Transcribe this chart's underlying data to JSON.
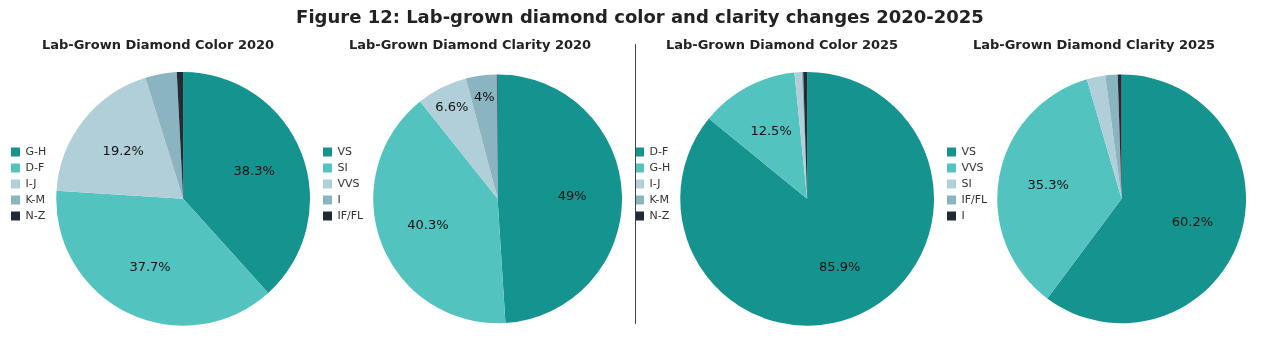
{
  "chart_data": [
    {
      "type": "pie",
      "title": "Lab-Grown Diamond Color 2020",
      "annotations": [
        "Figure 12: Lab-grown diamond color and clarity changes 2020-2025"
      ],
      "legend": "left",
      "categories": [
        "G-H",
        "D-F",
        "I-J",
        "K-M",
        "N-Z"
      ],
      "values": [
        38.3,
        37.7,
        19.2,
        4.0,
        0.8
      ],
      "value_labels": [
        "38.3%",
        "37.7%",
        "19.2%",
        null,
        null
      ],
      "colors": [
        "#14938f",
        "#52c3bf",
        "#b1cfd9",
        "#8ab4bf",
        "#222b36"
      ]
    },
    {
      "type": "pie",
      "title": "Lab-Grown Diamond Clarity 2020",
      "legend": "left",
      "categories": [
        "VS",
        "SI",
        "VVS",
        "I",
        "IF/FL"
      ],
      "values": [
        49,
        40.3,
        6.6,
        4,
        0.1
      ],
      "value_labels": [
        "49%",
        "40.3%",
        "6.6%",
        "4%",
        null
      ],
      "colors": [
        "#14938f",
        "#52c3bf",
        "#b1cfd9",
        "#8ab4bf",
        "#222b36"
      ]
    },
    {
      "type": "pie",
      "title": "Lab-Grown Diamond Color 2025",
      "legend": "left",
      "categories": [
        "D-F",
        "G-H",
        "I-J",
        "K-M",
        "N-Z"
      ],
      "values": [
        85.9,
        12.5,
        0.9,
        0.2,
        0.5
      ],
      "value_labels": [
        "85.9%",
        "12.5%",
        null,
        null,
        null
      ],
      "colors": [
        "#14938f",
        "#52c3bf",
        "#b1cfd9",
        "#8ab4bf",
        "#222b36"
      ]
    },
    {
      "type": "pie",
      "title": "Lab-Grown Diamond Clarity 2025",
      "legend": "left",
      "categories": [
        "VS",
        "VVS",
        "SI",
        "IF/FL",
        "I"
      ],
      "values": [
        60.2,
        35.3,
        2.4,
        1.6,
        0.5
      ],
      "value_labels": [
        "60.2%",
        "35.3%",
        null,
        null,
        null
      ],
      "colors": [
        "#14938f",
        "#52c3bf",
        "#b1cfd9",
        "#8ab4bf",
        "#222b36"
      ]
    }
  ]
}
